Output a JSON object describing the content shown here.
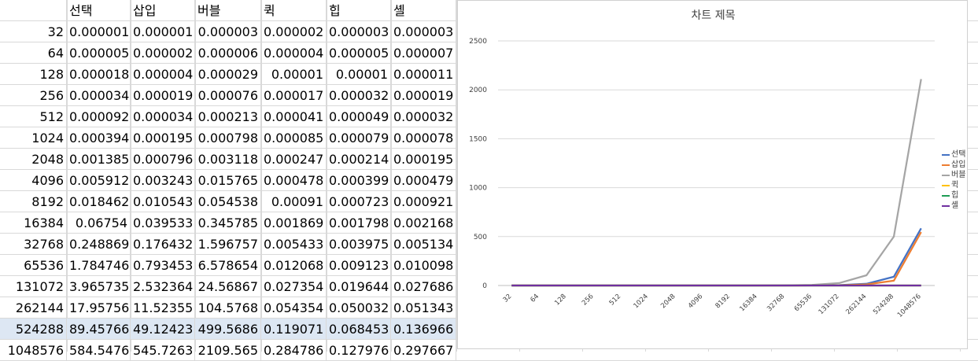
{
  "sheet": {
    "headers": [
      "",
      "선택",
      "삽입",
      "버블",
      "퀵",
      "힙",
      "셸"
    ],
    "rows": [
      [
        "32",
        "0.000001",
        "0.000001",
        "0.000003",
        "0.000002",
        "0.000003",
        "0.000003"
      ],
      [
        "64",
        "0.000005",
        "0.000002",
        "0.000006",
        "0.000004",
        "0.000005",
        "0.000007"
      ],
      [
        "128",
        "0.000018",
        "0.000004",
        "0.000029",
        "0.00001",
        "0.00001",
        "0.000011"
      ],
      [
        "256",
        "0.000034",
        "0.000019",
        "0.000076",
        "0.000017",
        "0.000032",
        "0.000019"
      ],
      [
        "512",
        "0.000092",
        "0.000034",
        "0.000213",
        "0.000041",
        "0.000049",
        "0.000032"
      ],
      [
        "1024",
        "0.000394",
        "0.000195",
        "0.000798",
        "0.000085",
        "0.000079",
        "0.000078"
      ],
      [
        "2048",
        "0.001385",
        "0.000796",
        "0.003118",
        "0.000247",
        "0.000214",
        "0.000195"
      ],
      [
        "4096",
        "0.005912",
        "0.003243",
        "0.015765",
        "0.000478",
        "0.000399",
        "0.000479"
      ],
      [
        "8192",
        "0.018462",
        "0.010543",
        "0.054538",
        "0.00091",
        "0.000723",
        "0.000921"
      ],
      [
        "16384",
        "0.06754",
        "0.039533",
        "0.345785",
        "0.001869",
        "0.001798",
        "0.002168"
      ],
      [
        "32768",
        "0.248869",
        "0.176432",
        "1.596757",
        "0.005433",
        "0.003975",
        "0.005134"
      ],
      [
        "65536",
        "1.784746",
        "0.793453",
        "6.578654",
        "0.012068",
        "0.009123",
        "0.010098"
      ],
      [
        "131072",
        "3.965735",
        "2.532364",
        "24.56867",
        "0.027354",
        "0.019644",
        "0.027686"
      ],
      [
        "262144",
        "17.95756",
        "11.52355",
        "104.5768",
        "0.054354",
        "0.050032",
        "0.051343"
      ],
      [
        "524288",
        "89.45766",
        "49.12423",
        "499.5686",
        "0.119071",
        "0.068453",
        "0.136966"
      ],
      [
        "1048576",
        "584.5476",
        "545.7263",
        "2109.565",
        "0.284786",
        "0.127976",
        "0.297667"
      ]
    ],
    "selected_row_index": 14
  },
  "chart_data": {
    "type": "line",
    "title": "차트 제목",
    "xlabel": "",
    "ylabel": "",
    "categories": [
      "32",
      "64",
      "128",
      "256",
      "512",
      "1024",
      "2048",
      "4096",
      "8192",
      "16384",
      "32768",
      "65536",
      "131072",
      "262144",
      "524288",
      "1048576"
    ],
    "ylim": [
      0,
      2500
    ],
    "yticks": [
      "0",
      "500",
      "1000",
      "1500",
      "2000",
      "2500"
    ],
    "grid": true,
    "legend_position": "right",
    "series": [
      {
        "name": "선택",
        "color": "#4472c4",
        "values": [
          1e-06,
          5e-06,
          1.8e-05,
          3.4e-05,
          9.2e-05,
          0.000394,
          0.001385,
          0.005912,
          0.018462,
          0.06754,
          0.248869,
          1.784746,
          3.965735,
          17.95756,
          89.45766,
          584.5476
        ]
      },
      {
        "name": "삽입",
        "color": "#ed7d31",
        "values": [
          1e-06,
          2e-06,
          4e-06,
          1.9e-05,
          3.4e-05,
          0.000195,
          0.000796,
          0.003243,
          0.010543,
          0.039533,
          0.176432,
          0.793453,
          2.532364,
          11.52355,
          49.12423,
          545.7263
        ]
      },
      {
        "name": "버블",
        "color": "#a5a5a5",
        "values": [
          3e-06,
          6e-06,
          2.9e-05,
          7.6e-05,
          0.000213,
          0.000798,
          0.003118,
          0.015765,
          0.054538,
          0.345785,
          1.596757,
          6.578654,
          24.56867,
          104.5768,
          499.5686,
          2109.565
        ]
      },
      {
        "name": "퀵",
        "color": "#ffc000",
        "values": [
          2e-06,
          4e-06,
          1e-05,
          1.7e-05,
          4.1e-05,
          8.5e-05,
          0.000247,
          0.000478,
          0.00091,
          0.001869,
          0.005433,
          0.012068,
          0.027354,
          0.054354,
          0.119071,
          0.284786
        ]
      },
      {
        "name": "힙",
        "color": "#1f9d55",
        "values": [
          3e-06,
          5e-06,
          1e-05,
          3.2e-05,
          4.9e-05,
          7.9e-05,
          0.000214,
          0.000399,
          0.000723,
          0.001798,
          0.003975,
          0.009123,
          0.019644,
          0.050032,
          0.068453,
          0.127976
        ]
      },
      {
        "name": "셸",
        "color": "#7030a0",
        "values": [
          3e-06,
          7e-06,
          1.1e-05,
          1.9e-05,
          3.2e-05,
          7.8e-05,
          0.000195,
          0.000479,
          0.000921,
          0.002168,
          0.005134,
          0.010098,
          0.027686,
          0.051343,
          0.136966,
          0.297667
        ]
      }
    ]
  }
}
